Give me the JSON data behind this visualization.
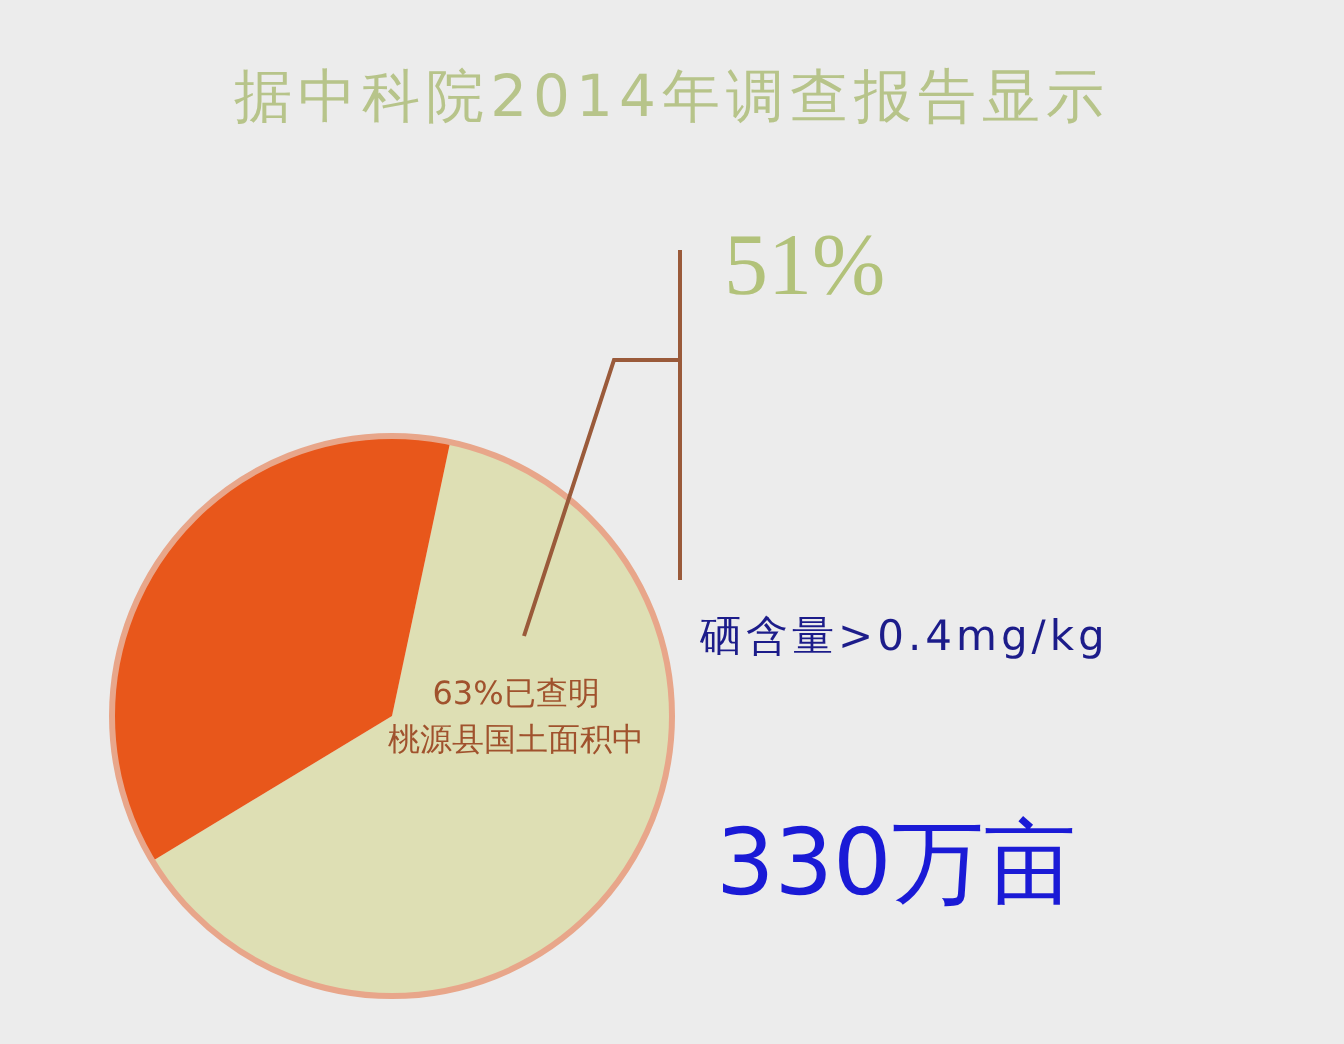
{
  "chart_data": {
    "type": "pie",
    "title": "据中科院2014年调查报告显示",
    "categories": [
      null,
      null
    ],
    "values": [
      63,
      37
    ],
    "colors": [
      "#dedfb4",
      "#e8571b"
    ],
    "annotations": [
      "63%已查明",
      "桃源县国土面积中",
      "51%",
      "硒含量>0.4mg/kg",
      "330万亩"
    ]
  }
}
